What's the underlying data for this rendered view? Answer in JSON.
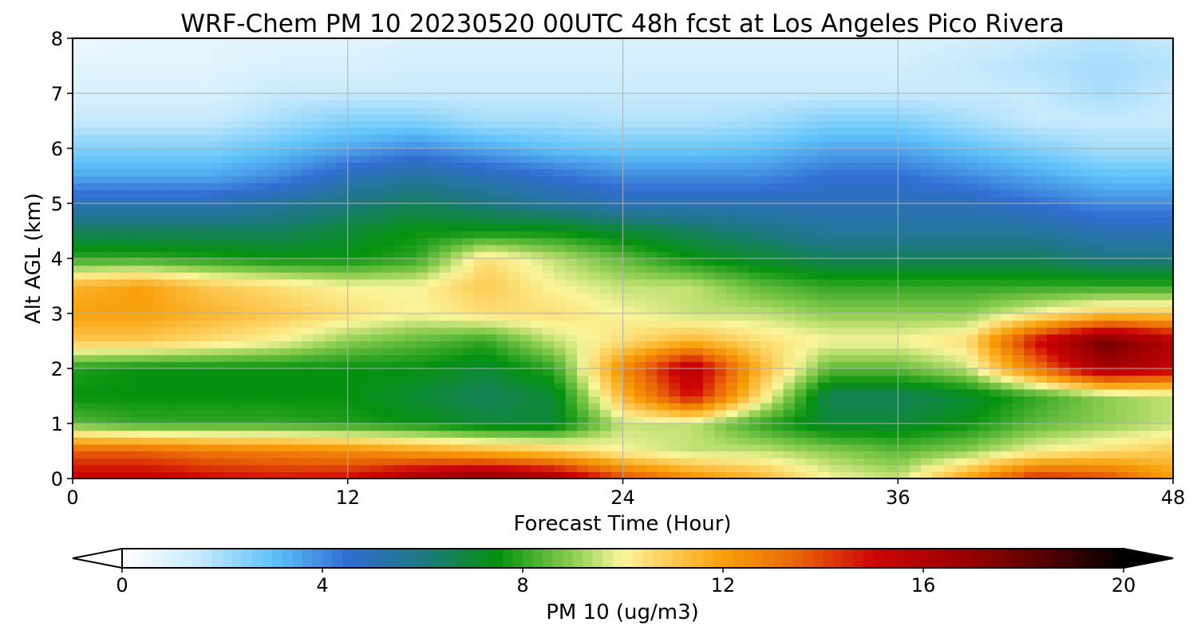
{
  "chart_data": {
    "type": "heatmap",
    "title": "WRF-Chem PM 10  20230520 00UTC 48h fcst at Los Angeles Pico Rivera",
    "xlabel": "Forecast Time (Hour)",
    "ylabel": "Alt AGL (km)",
    "xlim": [
      0,
      48
    ],
    "ylim": [
      0,
      8
    ],
    "xticks": [
      "0",
      "12",
      "24",
      "36",
      "48"
    ],
    "yticks": [
      "0",
      "1",
      "2",
      "3",
      "4",
      "5",
      "6",
      "7",
      "8"
    ],
    "grid": true,
    "x": [
      0,
      3,
      6,
      9,
      12,
      15,
      18,
      21,
      24,
      27,
      30,
      33,
      36,
      39,
      42,
      45,
      48
    ],
    "y": [
      0,
      0.5,
      1,
      1.5,
      2,
      2.5,
      3,
      3.5,
      4,
      4.5,
      5,
      5.5,
      6,
      6.5,
      7,
      7.5,
      8
    ],
    "z": [
      [
        15.5,
        15.5,
        15.0,
        14.8,
        15.0,
        16.5,
        17.5,
        16.5,
        14.0,
        12.5,
        11.5,
        10.0,
        9.5,
        12.0,
        14.5,
        14.0,
        12.0
      ],
      [
        13.5,
        13.5,
        13.0,
        12.8,
        12.5,
        12.0,
        11.5,
        11.0,
        10.0,
        9.5,
        9.5,
        9.0,
        8.5,
        9.0,
        10.0,
        10.5,
        11.0
      ],
      [
        8.5,
        8.0,
        8.0,
        8.0,
        7.8,
        7.5,
        7.0,
        7.0,
        9.5,
        9.5,
        8.0,
        7.0,
        7.0,
        7.5,
        8.5,
        9.0,
        9.5
      ],
      [
        7.5,
        7.5,
        7.5,
        7.5,
        7.5,
        7.0,
        6.5,
        7.0,
        11.5,
        15.0,
        10.5,
        6.5,
        6.5,
        7.0,
        8.0,
        9.0,
        9.5
      ],
      [
        7.8,
        7.5,
        7.5,
        7.5,
        7.5,
        7.5,
        7.0,
        8.0,
        12.5,
        16.0,
        11.5,
        8.5,
        8.5,
        9.5,
        13.0,
        16.5,
        15.5
      ],
      [
        11.0,
        11.0,
        10.5,
        10.0,
        9.0,
        8.5,
        8.0,
        9.5,
        10.5,
        11.5,
        10.5,
        10.0,
        10.0,
        10.5,
        15.0,
        18.0,
        16.0
      ],
      [
        12.0,
        12.0,
        11.5,
        11.0,
        10.5,
        10.0,
        10.5,
        10.5,
        10.0,
        9.5,
        9.5,
        9.0,
        9.0,
        9.0,
        10.0,
        11.0,
        11.0
      ],
      [
        11.5,
        12.0,
        11.0,
        10.5,
        10.0,
        10.0,
        11.0,
        10.0,
        9.5,
        9.5,
        8.5,
        8.0,
        8.0,
        8.0,
        8.0,
        8.0,
        8.0
      ],
      [
        8.0,
        8.0,
        7.8,
        7.5,
        7.5,
        8.0,
        10.5,
        9.5,
        8.5,
        7.5,
        7.0,
        6.5,
        6.5,
        6.5,
        6.5,
        6.0,
        6.0
      ],
      [
        6.5,
        6.5,
        6.5,
        6.5,
        7.0,
        7.5,
        7.5,
        7.5,
        7.0,
        6.5,
        6.0,
        5.5,
        5.5,
        5.5,
        5.5,
        5.0,
        5.0
      ],
      [
        5.0,
        5.0,
        5.0,
        5.5,
        6.0,
        6.5,
        6.0,
        5.5,
        5.0,
        5.0,
        5.0,
        5.0,
        5.0,
        5.0,
        4.5,
        4.0,
        4.0
      ],
      [
        3.5,
        3.5,
        3.5,
        4.0,
        5.0,
        5.5,
        5.0,
        4.5,
        4.0,
        4.0,
        4.0,
        4.5,
        4.5,
        4.0,
        3.5,
        3.0,
        3.0
      ],
      [
        2.5,
        2.5,
        2.5,
        3.0,
        3.5,
        4.0,
        3.5,
        3.0,
        2.8,
        2.8,
        3.0,
        3.5,
        3.5,
        3.0,
        2.5,
        2.0,
        2.0
      ],
      [
        1.5,
        1.5,
        1.5,
        2.0,
        2.5,
        2.5,
        2.0,
        2.0,
        1.8,
        1.8,
        2.0,
        2.5,
        2.5,
        2.0,
        1.5,
        1.5,
        1.5
      ],
      [
        1.0,
        1.0,
        1.0,
        1.5,
        1.5,
        1.5,
        1.5,
        1.5,
        1.5,
        1.5,
        1.5,
        1.5,
        1.5,
        1.5,
        1.5,
        2.0,
        1.5
      ],
      [
        0.8,
        0.8,
        0.8,
        1.0,
        1.0,
        1.2,
        1.2,
        1.2,
        1.2,
        1.2,
        1.2,
        1.2,
        1.2,
        1.5,
        1.8,
        2.0,
        1.8
      ],
      [
        0.5,
        0.8,
        0.8,
        0.8,
        0.8,
        1.0,
        1.0,
        1.0,
        1.0,
        1.0,
        1.0,
        1.0,
        1.0,
        1.2,
        1.5,
        1.8,
        1.5
      ]
    ],
    "colorbar": {
      "label": "PM 10  (ug/m3)",
      "min": 0,
      "max": 20,
      "ticks": [
        "0",
        "4",
        "8",
        "12",
        "16",
        "20"
      ],
      "extend": "both"
    }
  }
}
